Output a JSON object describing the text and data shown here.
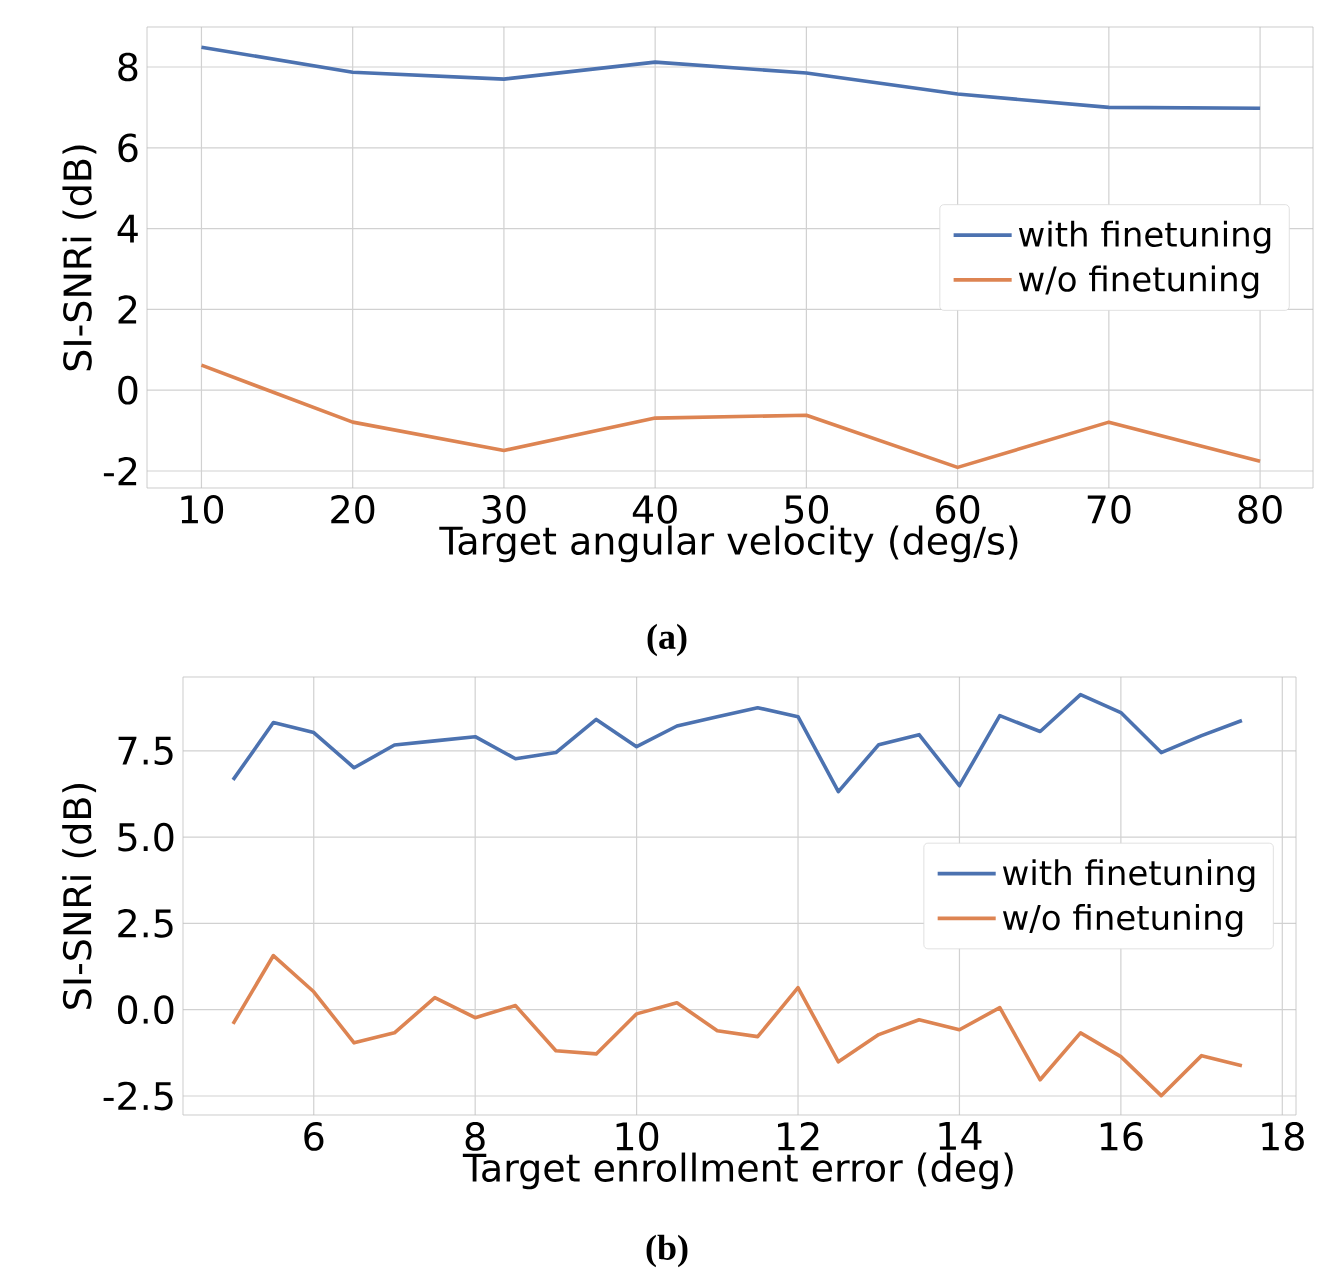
{
  "chart_data": [
    {
      "type": "line",
      "xlabel": "Target angular velocity (deg/s)",
      "ylabel": "SI-SNRi (dB)",
      "annotations": [
        "(a)"
      ],
      "x": [
        10,
        20,
        30,
        40,
        50,
        60,
        70,
        80
      ],
      "series": [
        {
          "name": "with finetuning",
          "color": "#4c72b0",
          "values": [
            8.49,
            7.87,
            7.7,
            8.12,
            7.85,
            7.33,
            7.0,
            6.98
          ]
        },
        {
          "name": "w/o finetuning",
          "color": "#dd8452",
          "values": [
            0.62,
            -0.79,
            -1.49,
            -0.69,
            -0.62,
            -1.91,
            -0.79,
            -1.76
          ]
        }
      ],
      "xlim": [
        6.4,
        83.5
      ],
      "ylim": [
        -2.42,
        8.99
      ],
      "xticks": [
        10,
        20,
        30,
        40,
        50,
        60,
        70,
        80
      ],
      "yticks": [
        -2,
        0,
        2,
        4,
        6,
        8
      ],
      "grid": true,
      "legend": "right",
      "line_style": "solid",
      "marker": "none"
    },
    {
      "type": "line",
      "xlabel": "Target enrollment error (deg)",
      "ylabel": "SI-SNRi (dB)",
      "annotations": [
        "(b)"
      ],
      "x": [
        5,
        5.5,
        6,
        6.5,
        7,
        7.5,
        8,
        8.5,
        9,
        9.5,
        10,
        10.5,
        11,
        11.5,
        12,
        12.5,
        13,
        13.5,
        14,
        14.5,
        15,
        15.5,
        16,
        16.5,
        17,
        17.5
      ],
      "series": [
        {
          "name": "with finetuning",
          "color": "#4c72b0",
          "values": [
            6.66,
            8.32,
            8.03,
            7.01,
            7.67,
            7.79,
            7.91,
            7.27,
            7.45,
            8.41,
            7.62,
            8.22,
            8.49,
            8.75,
            8.49,
            6.32,
            7.68,
            7.97,
            6.49,
            8.52,
            8.06,
            9.13,
            8.61,
            7.45,
            7.94,
            8.38
          ]
        },
        {
          "name": "w/o finetuning",
          "color": "#dd8452",
          "values": [
            -0.41,
            1.57,
            0.52,
            -0.96,
            -0.67,
            0.35,
            -0.23,
            0.12,
            -1.19,
            -1.28,
            -0.12,
            0.2,
            -0.61,
            -0.78,
            0.64,
            -1.51,
            -0.72,
            -0.29,
            -0.58,
            0.06,
            -2.03,
            -0.67,
            -1.36,
            -2.49,
            -1.33,
            -1.62
          ]
        }
      ],
      "xlim": [
        4.38,
        18.17
      ],
      "ylim": [
        -3.05,
        9.64
      ],
      "xticks": [
        6,
        8,
        10,
        12,
        14,
        16,
        18
      ],
      "yticks": [
        -2.5,
        {
          "value": 0,
          "label": "0.0"
        },
        2.5,
        {
          "value": 5,
          "label": "5.0"
        },
        7.5
      ],
      "grid": true,
      "legend": "right",
      "line_style": "solid",
      "marker": "none"
    }
  ]
}
